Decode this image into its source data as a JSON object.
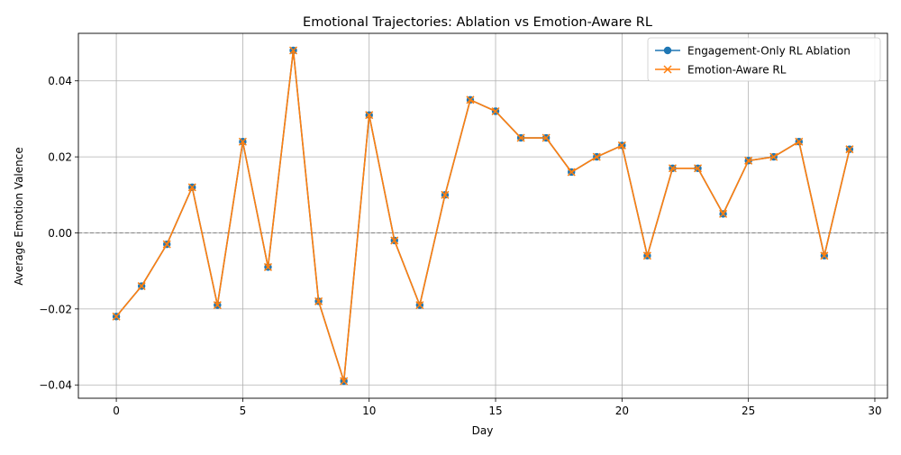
{
  "chart_data": {
    "type": "line",
    "title": "Emotional Trajectories: Ablation vs Emotion-Aware RL",
    "xlabel": "Day",
    "ylabel": "Average Emotion Valence",
    "xlim": [
      -1.5,
      30.5
    ],
    "ylim": [
      -0.0435,
      0.0525
    ],
    "xticks": [
      0,
      5,
      10,
      15,
      20,
      25,
      30
    ],
    "xtick_labels": [
      "0",
      "5",
      "10",
      "15",
      "20",
      "25",
      "30"
    ],
    "yticks": [
      -0.04,
      -0.02,
      0.0,
      0.02,
      0.04
    ],
    "ytick_labels": [
      "−0.04",
      "−0.02",
      "0.00",
      "0.02",
      "0.04"
    ],
    "grid": true,
    "reference_line": {
      "y": 0.0,
      "style": "dashed",
      "color": "#808080"
    },
    "legend_position": "top-right",
    "x": [
      0,
      1,
      2,
      3,
      4,
      5,
      6,
      7,
      8,
      9,
      10,
      11,
      12,
      13,
      14,
      15,
      16,
      17,
      18,
      19,
      20,
      21,
      22,
      23,
      24,
      25,
      26,
      27,
      28,
      29
    ],
    "series": [
      {
        "name": "Engagement-Only RL Ablation",
        "color": "#1f77b4",
        "marker": "circle",
        "values": [
          -0.022,
          -0.014,
          -0.003,
          0.012,
          -0.019,
          0.024,
          -0.009,
          0.048,
          -0.018,
          -0.039,
          0.031,
          -0.002,
          -0.019,
          0.01,
          0.035,
          0.032,
          0.025,
          0.025,
          0.016,
          0.02,
          0.023,
          -0.006,
          0.017,
          0.017,
          0.005,
          0.019,
          0.02,
          0.024,
          -0.006,
          0.022
        ]
      },
      {
        "name": "Emotion-Aware RL",
        "color": "#ff7f0e",
        "marker": "x",
        "values": [
          -0.022,
          -0.014,
          -0.003,
          0.012,
          -0.019,
          0.024,
          -0.009,
          0.048,
          -0.018,
          -0.039,
          0.031,
          -0.002,
          -0.019,
          0.01,
          0.035,
          0.032,
          0.025,
          0.025,
          0.016,
          0.02,
          0.023,
          -0.006,
          0.017,
          0.017,
          0.005,
          0.019,
          0.02,
          0.024,
          -0.006,
          0.022
        ]
      }
    ]
  }
}
